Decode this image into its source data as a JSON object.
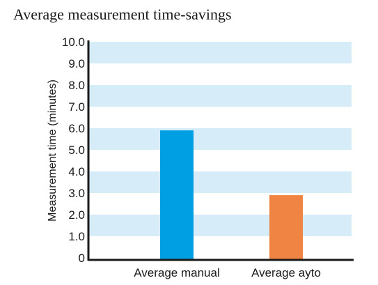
{
  "chart_data": {
    "type": "bar",
    "title": "Average measurement time-savings",
    "ylabel": "Measurement time (minutes)",
    "xlabel": "",
    "categories": [
      "Average manual",
      "Average ayto"
    ],
    "values": [
      5.9,
      2.9
    ],
    "bar_colors": [
      "#009fe3",
      "#f08443"
    ],
    "ylim": [
      0,
      10
    ],
    "yticks": [
      "0",
      "1.0",
      "2.0",
      "3.0",
      "4.0",
      "5.0",
      "6.0",
      "7.0",
      "8.0",
      "9.0",
      "10.0"
    ],
    "band_color": "#d6ecf8",
    "grid": "alternating horizontal bands",
    "legend": "none"
  }
}
